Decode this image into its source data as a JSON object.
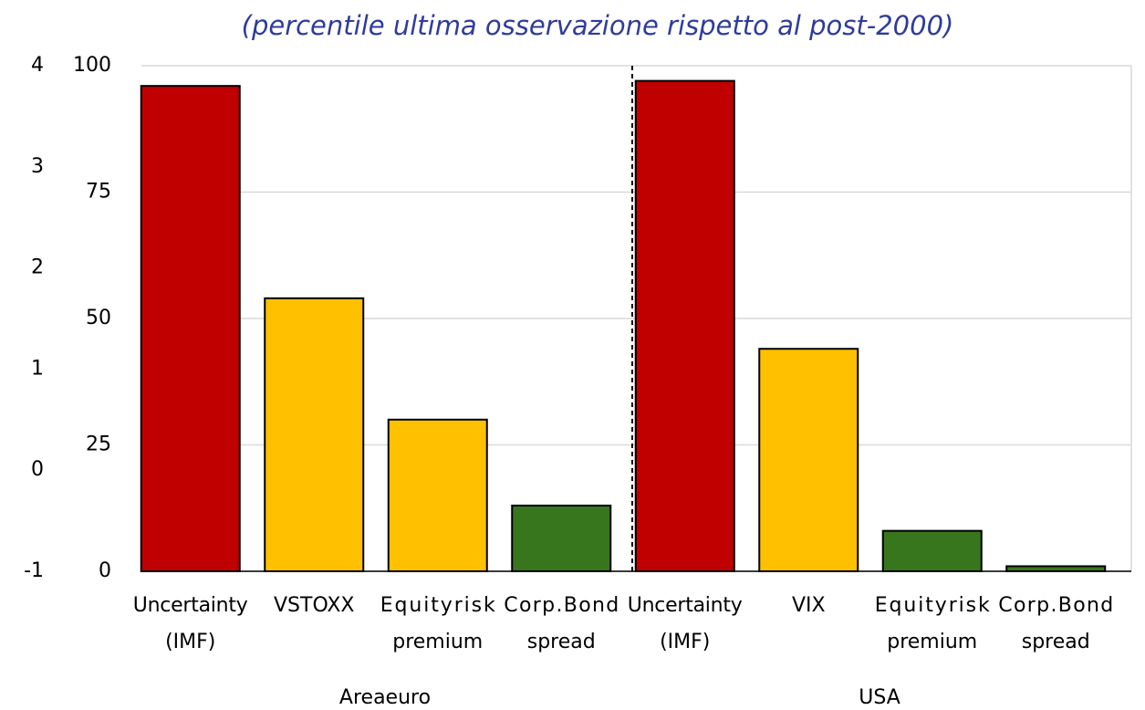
{
  "chart_data": {
    "type": "bar",
    "title": "(percentile ultima osservazione rispetto al post-2000)",
    "categories": [
      [
        "Uncertainty",
        "(IMF)"
      ],
      [
        "VSTOXX"
      ],
      [
        "Equityrisk",
        "premium"
      ],
      [
        "Corp.Bond",
        "spread"
      ],
      [
        "Uncertainty",
        "(IMF)"
      ],
      [
        "VIX"
      ],
      [
        "Equityrisk",
        "premium"
      ],
      [
        "Corp.Bond",
        "spread"
      ]
    ],
    "groups": [
      "Areaeuro",
      "USA"
    ],
    "values": [
      96,
      54,
      30,
      13,
      97,
      44,
      8,
      1
    ],
    "colors": [
      "#c00000",
      "#ffc000",
      "#ffc000",
      "#38761d",
      "#c00000",
      "#ffc000",
      "#38761d",
      "#38761d"
    ],
    "ylim": [
      0,
      100
    ],
    "yticks": [
      0,
      25,
      50,
      75,
      100
    ],
    "y2lim": [
      -1,
      4
    ],
    "y2ticks": [
      -1,
      0,
      1,
      2,
      3,
      4
    ],
    "grid": true
  }
}
